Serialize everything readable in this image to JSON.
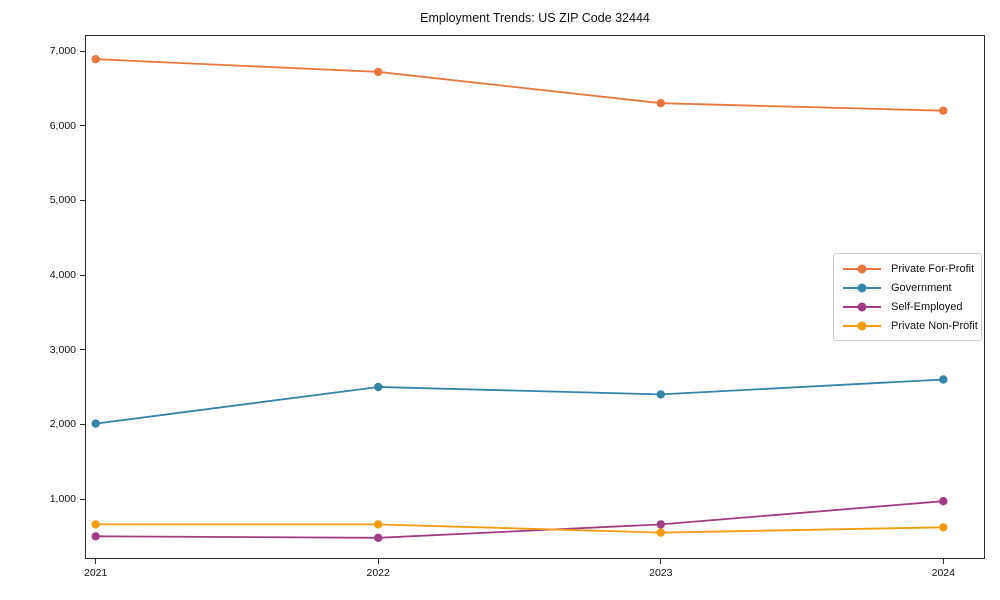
{
  "title": "Employment Trends: US ZIP Code 32444",
  "chart_data": {
    "type": "line",
    "title": "Employment Trends: US ZIP Code 32444",
    "categories": [
      "2021",
      "2022",
      "2023",
      "2024"
    ],
    "series": [
      {
        "name": "Private For-Profit",
        "color": "#e8763d",
        "values": [
          6890,
          6720,
          6300,
          6200
        ]
      },
      {
        "name": "Government",
        "color": "#3585a8",
        "values": [
          2010,
          2500,
          2400,
          2600
        ]
      },
      {
        "name": "Self-Employed",
        "color": "#a13d87",
        "values": [
          500,
          480,
          660,
          970
        ]
      },
      {
        "name": "Private Non-Profit",
        "color": "#f39c12",
        "values": [
          660,
          660,
          550,
          620
        ]
      }
    ],
    "xlabel": "",
    "ylabel": "",
    "ylim": [
      196,
      7214
    ],
    "yticks": [
      1000,
      2000,
      3000,
      4000,
      5000,
      6000,
      7000
    ],
    "ytick_labels": [
      "1,000",
      "2,000",
      "3,000",
      "4,000",
      "5,000",
      "6,000",
      "7,000"
    ],
    "grid": false,
    "legend_position": "center-right",
    "marker": "circle"
  }
}
